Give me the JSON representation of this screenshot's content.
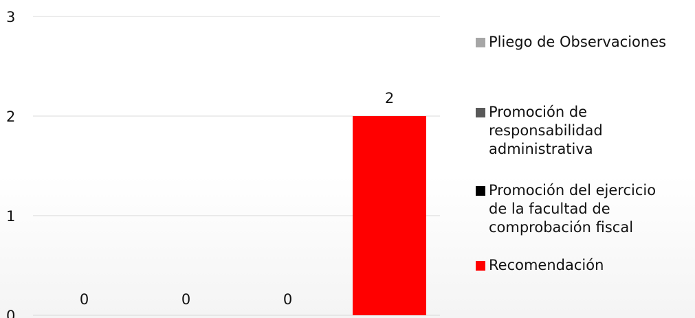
{
  "chart_data": {
    "type": "bar",
    "title": "",
    "xlabel": "",
    "ylabel": "",
    "ylim": [
      0,
      3
    ],
    "yticks": [
      "0",
      "1",
      "2",
      "3"
    ],
    "grid": true,
    "legend_position": "right",
    "series": [
      {
        "name": "Pliego de Observaciones",
        "values": [
          0
        ],
        "color": "#A6A6A6"
      },
      {
        "name": "Promoción de responsabilidad administrativa",
        "values": [
          0
        ],
        "color": "#595959"
      },
      {
        "name": "Promoción del ejercicio de la facultad de comprobación fiscal",
        "values": [
          0
        ],
        "color": "#000000"
      },
      {
        "name": "Recomendación",
        "values": [
          2
        ],
        "color": "#FF0000"
      }
    ],
    "data_labels": [
      "0",
      "0",
      "0",
      "2"
    ]
  },
  "legend": {
    "items": [
      {
        "lines": [
          "Pliego de Observaciones"
        ],
        "color": "#A6A6A6"
      },
      {
        "lines": [
          "Promoción de",
          "responsabilidad",
          "administrativa"
        ],
        "color": "#595959"
      },
      {
        "lines": [
          "Promoción del ejercicio",
          "de la facultad de",
          "comprobación fiscal"
        ],
        "color": "#000000"
      },
      {
        "lines": [
          "Recomendación"
        ],
        "color": "#FF0000"
      }
    ]
  }
}
